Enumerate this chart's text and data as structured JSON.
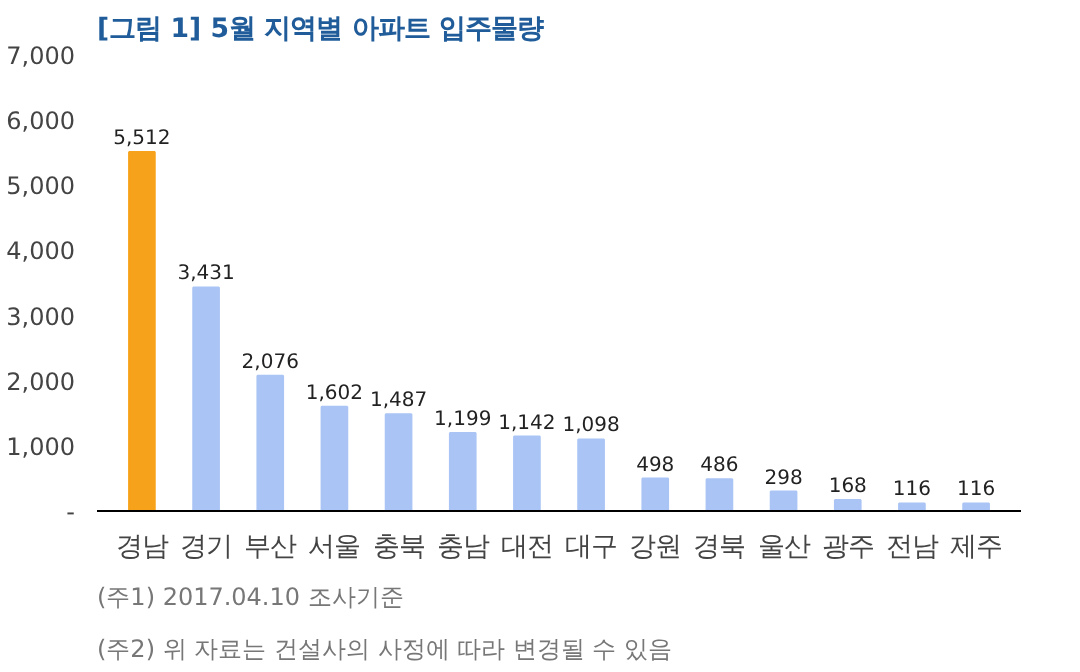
{
  "chart_data": {
    "type": "bar",
    "title": "[그림 1] 5월 지역별 아파트 입주물량",
    "categories": [
      "경남",
      "경기",
      "부산",
      "서울",
      "충북",
      "충남",
      "대전",
      "대구",
      "강원",
      "경북",
      "울산",
      "광주",
      "전남",
      "제주"
    ],
    "values": [
      5512,
      3431,
      2076,
      1602,
      1487,
      1199,
      1142,
      1098,
      498,
      486,
      298,
      168,
      116,
      116
    ],
    "colors": [
      "#f7a21b",
      "#a9c4f5",
      "#a9c4f5",
      "#a9c4f5",
      "#a9c4f5",
      "#a9c4f5",
      "#a9c4f5",
      "#a9c4f5",
      "#a9c4f5",
      "#a9c4f5",
      "#a9c4f5",
      "#a9c4f5",
      "#a9c4f5",
      "#a9c4f5"
    ],
    "value_labels": [
      "5,512",
      "3,431",
      "2,076",
      "1,602",
      "1,487",
      "1,199",
      "1,142",
      "1,098",
      "498",
      "486",
      "298",
      "168",
      "116",
      "116"
    ],
    "ylim": [
      0,
      7000
    ],
    "yticks": [
      {
        "value": 0,
        "label": "-"
      },
      {
        "value": 1000,
        "label": "1,000"
      },
      {
        "value": 2000,
        "label": "2,000"
      },
      {
        "value": 3000,
        "label": "3,000"
      },
      {
        "value": 4000,
        "label": "4,000"
      },
      {
        "value": 5000,
        "label": "5,000"
      },
      {
        "value": 6000,
        "label": "6,000"
      },
      {
        "value": 7000,
        "label": "7,000"
      }
    ],
    "grid": false,
    "annotations": [
      "(주1) 2017.04.10 조사기준",
      "(주2) 위 자료는 건설사의 사정에 따라 변경될 수 있음"
    ]
  }
}
